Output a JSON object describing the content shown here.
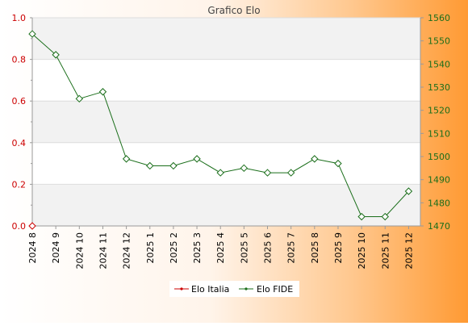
{
  "chart_data": {
    "type": "line",
    "title": "Grafico Elo",
    "categories": [
      "2024 8",
      "2024 9",
      "2024 10",
      "2024 11",
      "2024 12",
      "2025 1",
      "2025 2",
      "2025 3",
      "2025 4",
      "2025 5",
      "2025 6",
      "2025 7",
      "2025 8",
      "2025 9",
      "2025 10",
      "2025 11",
      "2025 12"
    ],
    "left_axis": {
      "ylim": [
        0,
        1.0
      ],
      "ticks": [
        "0.0",
        "0.2",
        "0.4",
        "0.6",
        "0.8",
        "1.0"
      ],
      "tick_values": [
        0,
        0.2,
        0.4,
        0.6,
        0.8,
        1.0
      ],
      "color": "#cc0000"
    },
    "right_axis": {
      "ylim": [
        1470,
        1560
      ],
      "ticks": [
        "1470",
        "1480",
        "1490",
        "1500",
        "1510",
        "1520",
        "1530",
        "1540",
        "1550",
        "1560"
      ],
      "tick_values": [
        1470,
        1480,
        1490,
        1500,
        1510,
        1520,
        1530,
        1540,
        1550,
        1560
      ],
      "color": "#1a6e1a"
    },
    "series": [
      {
        "name": "Elo Italia",
        "axis": "left",
        "color": "#cc0000",
        "values": [
          0,
          null,
          null,
          null,
          null,
          null,
          null,
          null,
          null,
          null,
          null,
          null,
          null,
          null,
          null,
          null,
          null
        ]
      },
      {
        "name": "Elo FIDE",
        "axis": "right",
        "color": "#1a6e1a",
        "values": [
          1553,
          1544,
          1525,
          1528,
          1499,
          1496,
          1496,
          1499,
          1493,
          1495,
          1493,
          1493,
          1499,
          1497,
          1474,
          1474,
          1485
        ]
      }
    ],
    "legend": {
      "placement": "bottom-center",
      "labels": [
        "Elo Italia",
        "Elo FIDE"
      ]
    },
    "grid": true
  }
}
